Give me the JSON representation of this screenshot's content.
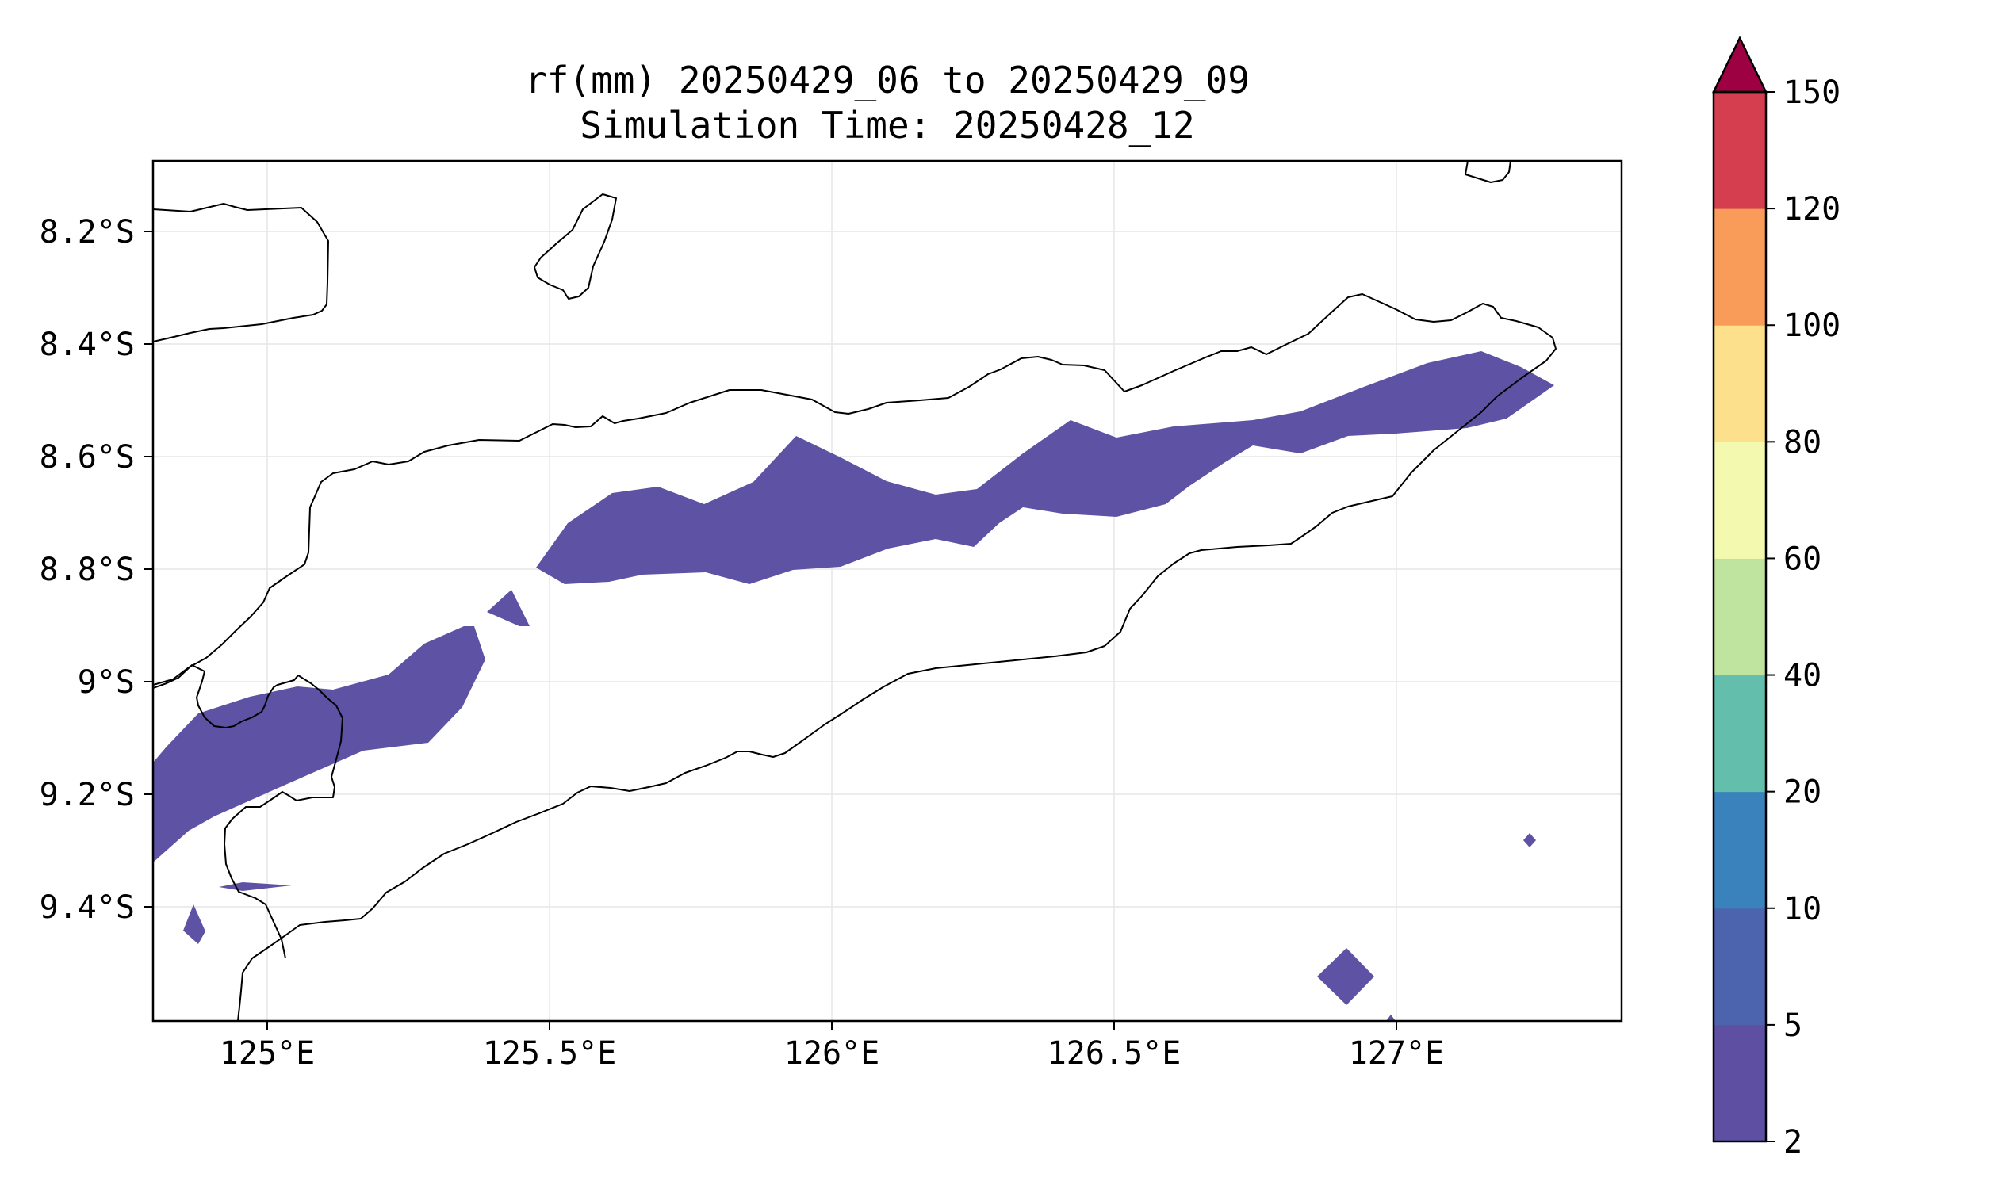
{
  "title": {
    "line1": "rf(mm) 20250429_06 to 20250429_09",
    "line2": "Simulation Time: 20250428_12"
  },
  "map": {
    "lon_ticks": [
      "125°E",
      "125.5°E",
      "126°E",
      "126.5°E",
      "127°E"
    ],
    "lat_ticks": [
      "8.2°S",
      "8.4°S",
      "8.6°S",
      "8.8°S",
      "9°S",
      "9.2°S",
      "9.4°S"
    ],
    "lon_range": [
      124.82,
      127.42
    ],
    "lat_range": [
      -9.58,
      -8.08
    ],
    "gridlines": true,
    "rain_color": "#5e52a5",
    "coast_color": "#000000"
  },
  "colorbar": {
    "levels": [
      "2",
      "5",
      "10",
      "20",
      "40",
      "60",
      "80",
      "100",
      "120",
      "150"
    ],
    "colors": [
      "#5e4fa2",
      "#4c63ad",
      "#3a82bb",
      "#63bfab",
      "#bee4a0",
      "#f3f9ae",
      "#fce08b",
      "#f99c5a",
      "#d53e4f"
    ],
    "extend_color": "#9e0142",
    "extend": "max"
  }
}
